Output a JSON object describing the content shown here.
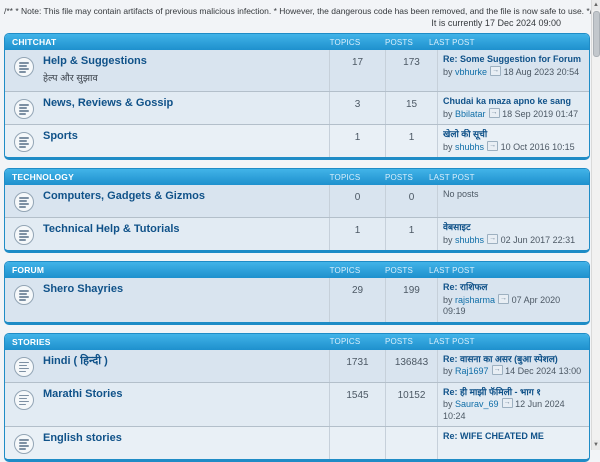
{
  "page": {
    "note_line": "/** * Note: This file may contain artifacts of previous malicious infection. * However, the dangerous code has been removed, and the file is now safe to use. */",
    "current_time": "It is currently 17 Dec 2024 09:00"
  },
  "columns": {
    "topics": "TOPICS",
    "posts": "POSTS",
    "last_post": "LAST POST"
  },
  "by_label": "by",
  "colors": {
    "header_gradient_top": "#41b3e8",
    "header_gradient_bottom": "#1e90cd",
    "section_border": "#1f8cc6",
    "link": "#105289",
    "row_a": "#d9e4ef",
    "row_b": "#e2ebf3"
  },
  "sections": [
    {
      "title": "CHITCHAT",
      "forums": [
        {
          "name": "Help & Suggestions",
          "subtitle": "हेल्प और सुझाव",
          "topics": "17",
          "posts": "173",
          "last": {
            "title": "Re: Some Suggestion for Forum",
            "user": "vbhurke",
            "date": "18 Aug 2023 20:54"
          }
        },
        {
          "name": "News, Reviews & Gossip",
          "subtitle": "",
          "topics": "3",
          "posts": "15",
          "last": {
            "title": "Chudai ka maza apno ke sang",
            "user": "Bbilatar",
            "date": "18 Sep 2019 01:47"
          }
        },
        {
          "name": "Sports",
          "subtitle": "",
          "topics": "1",
          "posts": "1",
          "last": {
            "title": "खेलो की सूची",
            "user": "shubhs",
            "date": "10 Oct 2016 10:15"
          }
        }
      ]
    },
    {
      "title": "TECHNOLOGY",
      "forums": [
        {
          "name": "Computers, Gadgets & Gizmos",
          "subtitle": "",
          "topics": "0",
          "posts": "0",
          "no_posts": "No posts"
        },
        {
          "name": "Technical Help & Tutorials",
          "subtitle": "",
          "topics": "1",
          "posts": "1",
          "last": {
            "title": "वेबसाइट",
            "user": "shubhs",
            "date": "02 Jun 2017 22:31"
          }
        }
      ]
    },
    {
      "title": "FORUM",
      "forums": [
        {
          "name": "Shero Shayries",
          "subtitle": "",
          "topics": "29",
          "posts": "199",
          "last": {
            "title": "Re: राशिफल",
            "user": "rajsharma",
            "date": "07 Apr 2020 09:19"
          }
        }
      ]
    },
    {
      "title": "STORIES",
      "forums": [
        {
          "name": "Hindi ( हिन्दी )",
          "subtitle": "",
          "topics": "1731",
          "posts": "136843",
          "last": {
            "title": "Re: वासना का असर (बुआ स्पेशल)",
            "user": "Raj1697",
            "date": "14 Dec 2024 13:00"
          }
        },
        {
          "name": "Marathi Stories",
          "subtitle": "",
          "topics": "1545",
          "posts": "10152",
          "last": {
            "title": "Re: ही माझी फॅमिली - भाग १",
            "user": "Saurav_69",
            "date": "12 Jun 2024 10:24"
          }
        },
        {
          "name": "English stories",
          "subtitle": "",
          "topics": "",
          "posts": "",
          "last": {
            "title": "Re: WIFE CHEATED ME",
            "user": "",
            "date": ""
          }
        }
      ]
    }
  ],
  "scrollbar": {
    "up_glyph": "▲",
    "down_glyph": "▼"
  }
}
